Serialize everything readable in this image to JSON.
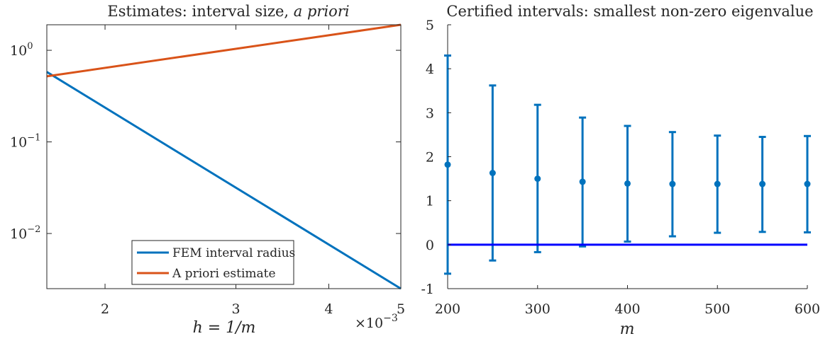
{
  "chart_data": [
    {
      "type": "line",
      "title": "Estimates: interval size, ",
      "title_emph": "a priori",
      "xlabel": "h = 1/m",
      "xscale": "log",
      "yscale": "log",
      "xlim": [
        0.00167,
        0.005
      ],
      "ylim": [
        0.0025,
        1.9
      ],
      "x_tick_labels": [
        "2",
        "3",
        "4",
        "5"
      ],
      "x_ticks": [
        0.002,
        0.003,
        0.004,
        0.005
      ],
      "x_multiplier": "×10",
      "x_multiplier_exp": "−3",
      "y_ticks": [
        1,
        0.1,
        0.01
      ],
      "y_tick_labels": [
        {
          "base": "10",
          "exp": "0"
        },
        {
          "base": "10",
          "exp": "−1"
        },
        {
          "base": "10",
          "exp": "−2"
        }
      ],
      "legend_position": "bottom-right",
      "series": [
        {
          "name": "FEM interval radius",
          "color": "#0072BD",
          "x": [
            0.00167,
            0.005
          ],
          "y": [
            0.58,
            0.0025
          ]
        },
        {
          "name": "A priori estimate",
          "color": "#D95319",
          "x": [
            0.00167,
            0.005
          ],
          "y": [
            0.52,
            1.9
          ]
        }
      ]
    },
    {
      "type": "errorbar",
      "title": "Certified intervals: smallest non-zero eigenvalue",
      "xlabel": "m",
      "xlim": [
        200,
        600
      ],
      "ylim": [
        -1,
        5
      ],
      "x_ticks": [
        200,
        300,
        400,
        500,
        600
      ],
      "y_ticks": [
        -1,
        0,
        1,
        2,
        3,
        4,
        5
      ],
      "color": "#0072BD",
      "zero_line_color": "#0000FF",
      "points": [
        {
          "m": 200,
          "center": 1.82,
          "lower": -0.66,
          "upper": 4.3
        },
        {
          "m": 250,
          "center": 1.63,
          "lower": -0.36,
          "upper": 3.62
        },
        {
          "m": 300,
          "center": 1.5,
          "lower": -0.17,
          "upper": 3.18
        },
        {
          "m": 350,
          "center": 1.43,
          "lower": -0.04,
          "upper": 2.89
        },
        {
          "m": 400,
          "center": 1.39,
          "lower": 0.07,
          "upper": 2.7
        },
        {
          "m": 450,
          "center": 1.38,
          "lower": 0.19,
          "upper": 2.56
        },
        {
          "m": 500,
          "center": 1.38,
          "lower": 0.27,
          "upper": 2.48
        },
        {
          "m": 550,
          "center": 1.38,
          "lower": 0.29,
          "upper": 2.45
        },
        {
          "m": 600,
          "center": 1.38,
          "lower": 0.28,
          "upper": 2.47
        }
      ]
    }
  ]
}
